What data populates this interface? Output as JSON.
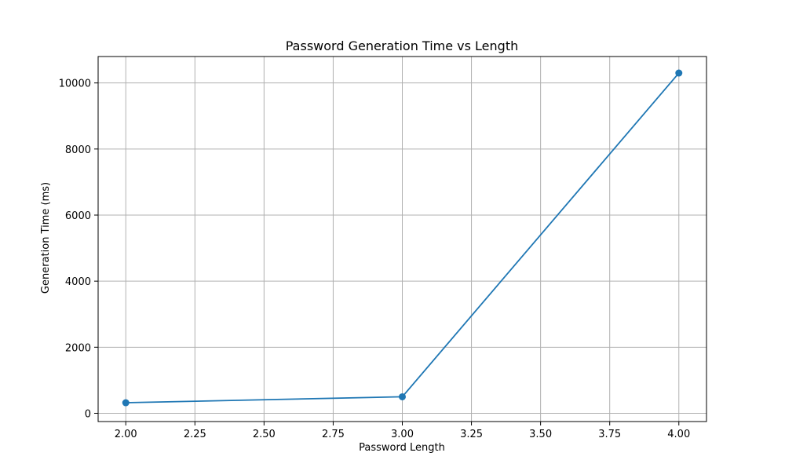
{
  "chart_data": {
    "type": "line",
    "title": "Password Generation Time vs Length",
    "xlabel": "Password Length",
    "ylabel": "Generation Time (ms)",
    "xlim": [
      1.9,
      4.1
    ],
    "ylim": [
      -250,
      10800
    ],
    "x_ticks": [
      2.0,
      2.25,
      2.5,
      2.75,
      3.0,
      3.25,
      3.5,
      3.75,
      4.0
    ],
    "x_tick_labels": [
      "2.00",
      "2.25",
      "2.50",
      "2.75",
      "3.00",
      "3.25",
      "3.50",
      "3.75",
      "4.00"
    ],
    "y_ticks": [
      0,
      2000,
      4000,
      6000,
      8000,
      10000
    ],
    "y_tick_labels": [
      "0",
      "2000",
      "4000",
      "6000",
      "8000",
      "10000"
    ],
    "grid": true,
    "series": [
      {
        "x": [
          2,
          3,
          4
        ],
        "values": [
          320,
          500,
          10300
        ],
        "color": "#1f77b4",
        "marker": "circle"
      }
    ]
  }
}
